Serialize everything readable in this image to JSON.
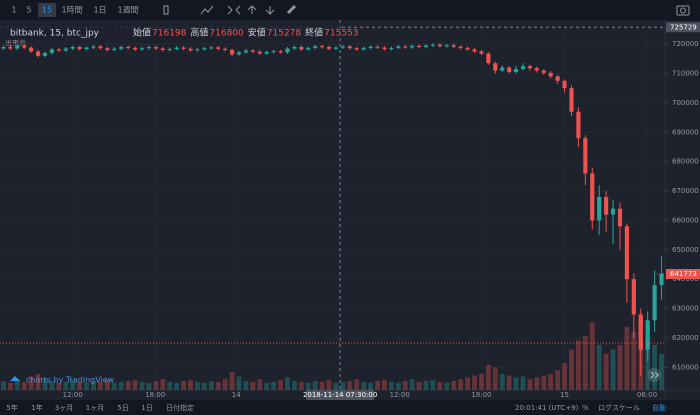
{
  "toolbar": {
    "intervals": [
      "1",
      "5",
      "15",
      "1時間",
      "1日",
      "1週間"
    ],
    "active": 2
  },
  "bottom_bar": {
    "ranges": [
      "5年",
      "1年",
      "3ヶ月",
      "1ヶ月",
      "5日",
      "1日",
      "日付指定"
    ],
    "time": "20:01:41 (UTC+9)",
    "options": [
      "%",
      "ログスケール",
      "自動"
    ]
  },
  "watermark": "charts by TradingView",
  "chart_data": {
    "type": "candlestick",
    "title": "bitbank, 15, btc_jpy",
    "legend": [
      {
        "name": "始値",
        "value": 716198
      },
      {
        "name": "高値",
        "value": 716800
      },
      {
        "name": "安値",
        "value": 715278
      },
      {
        "name": "終値",
        "value": 715553
      }
    ],
    "volume_label": "出来高",
    "up_color": "#26a69a",
    "down_color": "#ef5350",
    "ylim": [
      602300,
      728200
    ],
    "yticks": [
      720000,
      710000,
      700000,
      690000,
      680000,
      670000,
      660000,
      650000,
      640000,
      630000,
      620000,
      610000
    ],
    "xlim": [
      -0.5,
      95.5
    ],
    "xticks": [
      {
        "value": 10,
        "label": "12:00"
      },
      {
        "value": 21.9,
        "label": "18:00"
      },
      {
        "value": 33.6,
        "label": "14"
      },
      {
        "value": 57.2,
        "label": "12:00"
      },
      {
        "value": 69,
        "label": "18:00"
      },
      {
        "value": 81,
        "label": "15"
      },
      {
        "value": 92.9,
        "label": "06:00"
      }
    ],
    "grid": true,
    "crosshair": {
      "label": "2018-11-14 07:30:00",
      "x": 48.6,
      "y": 725729
    },
    "last_price": 641773,
    "reference_line": 618300,
    "y2lim": [
      0,
      100
    ],
    "candles": [
      [
        718500,
        719500,
        718000,
        719000
      ],
      [
        719000,
        719500,
        718000,
        718500
      ],
      [
        718500,
        720000,
        718000,
        719500
      ],
      [
        719500,
        720000,
        718300,
        718800
      ],
      [
        718800,
        719300,
        717000,
        717500
      ],
      [
        717500,
        718000,
        715500,
        716000
      ],
      [
        716000,
        717500,
        715500,
        717000
      ],
      [
        717000,
        718700,
        716500,
        718200
      ],
      [
        718200,
        718700,
        717300,
        717800
      ],
      [
        717800,
        719000,
        717300,
        718500
      ],
      [
        718500,
        719500,
        718000,
        719000
      ],
      [
        719000,
        719500,
        717800,
        718300
      ],
      [
        718300,
        719300,
        717800,
        718800
      ],
      [
        718800,
        719700,
        718300,
        719200
      ],
      [
        719200,
        719700,
        718100,
        718600
      ],
      [
        718600,
        719100,
        717500,
        718000
      ],
      [
        718000,
        718900,
        717500,
        718400
      ],
      [
        718400,
        719500,
        717900,
        719000
      ],
      [
        719000,
        719500,
        718200,
        718700
      ],
      [
        718700,
        719200,
        717700,
        718200
      ],
      [
        718200,
        719100,
        717700,
        718600
      ],
      [
        718600,
        719500,
        718100,
        719000
      ],
      [
        719000,
        719500,
        718000,
        718500
      ],
      [
        718500,
        719000,
        717500,
        718000
      ],
      [
        718000,
        718800,
        717500,
        718300
      ],
      [
        718300,
        719300,
        717800,
        718800
      ],
      [
        718800,
        719300,
        717900,
        718400
      ],
      [
        718400,
        718900,
        717400,
        717900
      ],
      [
        717900,
        718700,
        717400,
        718200
      ],
      [
        718200,
        719100,
        717700,
        718600
      ],
      [
        718600,
        719400,
        718100,
        718900
      ],
      [
        718900,
        719400,
        717900,
        718400
      ],
      [
        718400,
        718900,
        717500,
        718000
      ],
      [
        718000,
        718500,
        716000,
        716500
      ],
      [
        716500,
        717700,
        716000,
        717200
      ],
      [
        717200,
        718300,
        716700,
        717800
      ],
      [
        717800,
        718300,
        716900,
        717400
      ],
      [
        717400,
        717900,
        716300,
        716800
      ],
      [
        716800,
        717800,
        716300,
        717300
      ],
      [
        717300,
        718100,
        716800,
        717600
      ],
      [
        717600,
        718100,
        716700,
        717200
      ],
      [
        717200,
        719000,
        716700,
        718500
      ],
      [
        718500,
        719500,
        718000,
        719000
      ],
      [
        719000,
        719500,
        717700,
        718200
      ],
      [
        718200,
        719200,
        717700,
        718700
      ],
      [
        718700,
        719800,
        718200,
        719300
      ],
      [
        719300,
        719800,
        718500,
        719000
      ],
      [
        719000,
        719500,
        717900,
        718400
      ],
      [
        718400,
        719300,
        717900,
        718800
      ],
      [
        718800,
        719700,
        718300,
        719200
      ],
      [
        719200,
        719700,
        718100,
        718600
      ],
      [
        718600,
        719100,
        717700,
        718200
      ],
      [
        718200,
        719200,
        717700,
        718700
      ],
      [
        718700,
        719600,
        718200,
        719100
      ],
      [
        719100,
        719600,
        718300,
        718800
      ],
      [
        718800,
        719300,
        717800,
        718300
      ],
      [
        718300,
        719200,
        717800,
        718700
      ],
      [
        718700,
        719700,
        718200,
        719200
      ],
      [
        719200,
        719700,
        718400,
        718900
      ],
      [
        718900,
        719900,
        718400,
        719400
      ],
      [
        719400,
        719900,
        718500,
        719000
      ],
      [
        719000,
        720000,
        718500,
        719500
      ],
      [
        719500,
        720300,
        719000,
        719800
      ],
      [
        719800,
        720300,
        718800,
        719300
      ],
      [
        719300,
        720100,
        718800,
        719600
      ],
      [
        719600,
        720100,
        718600,
        719100
      ],
      [
        719100,
        719600,
        718200,
        718700
      ],
      [
        718700,
        719200,
        717700,
        718200
      ],
      [
        718200,
        718700,
        717000,
        717500
      ],
      [
        717500,
        718000,
        716300,
        716800
      ],
      [
        716800,
        717300,
        713000,
        713500
      ],
      [
        713500,
        714000,
        710000,
        711000
      ],
      [
        711000,
        712800,
        710500,
        712000
      ],
      [
        712000,
        712500,
        710000,
        710500
      ],
      [
        710500,
        712500,
        710000,
        711500
      ],
      [
        711500,
        713500,
        711000,
        712500
      ],
      [
        712500,
        713000,
        711000,
        711800
      ],
      [
        711800,
        712300,
        710300,
        711000
      ],
      [
        711000,
        711500,
        709500,
        710200
      ],
      [
        710200,
        710800,
        708300,
        709000
      ],
      [
        709000,
        709500,
        706500,
        707500
      ],
      [
        707500,
        708000,
        703500,
        705000
      ],
      [
        705000,
        706000,
        695500,
        697000
      ],
      [
        697000,
        698500,
        685000,
        688000
      ],
      [
        688000,
        689000,
        672000,
        676000
      ],
      [
        676000,
        678000,
        657000,
        660000
      ],
      [
        660000,
        672000,
        655000,
        668000
      ],
      [
        668000,
        670000,
        656000,
        662000
      ],
      [
        662000,
        667000,
        652000,
        664000
      ],
      [
        664000,
        666000,
        650000,
        658000
      ],
      [
        658000,
        659000,
        632000,
        640000
      ],
      [
        640000,
        642000,
        620000,
        628000
      ],
      [
        628000,
        630000,
        607000,
        616000
      ],
      [
        616000,
        629000,
        612000,
        626000
      ],
      [
        626000,
        643000,
        622000,
        638000
      ],
      [
        638000,
        648000,
        633000,
        641773
      ]
    ],
    "volume": [
      10,
      8,
      12,
      9,
      15,
      18,
      12,
      10,
      8,
      9,
      11,
      9,
      8,
      10,
      9,
      12,
      8,
      9,
      10,
      11,
      9,
      8,
      10,
      12,
      9,
      8,
      10,
      11,
      9,
      8,
      10,
      9,
      12,
      20,
      15,
      10,
      9,
      12,
      8,
      9,
      11,
      14,
      10,
      9,
      8,
      10,
      9,
      11,
      8,
      9,
      10,
      12,
      9,
      8,
      10,
      11,
      9,
      8,
      10,
      12,
      9,
      10,
      11,
      9,
      8,
      10,
      12,
      14,
      16,
      18,
      28,
      25,
      18,
      16,
      14,
      15,
      12,
      14,
      16,
      18,
      22,
      30,
      45,
      55,
      60,
      75,
      50,
      40,
      45,
      50,
      70,
      65,
      80,
      55,
      50,
      40
    ]
  }
}
